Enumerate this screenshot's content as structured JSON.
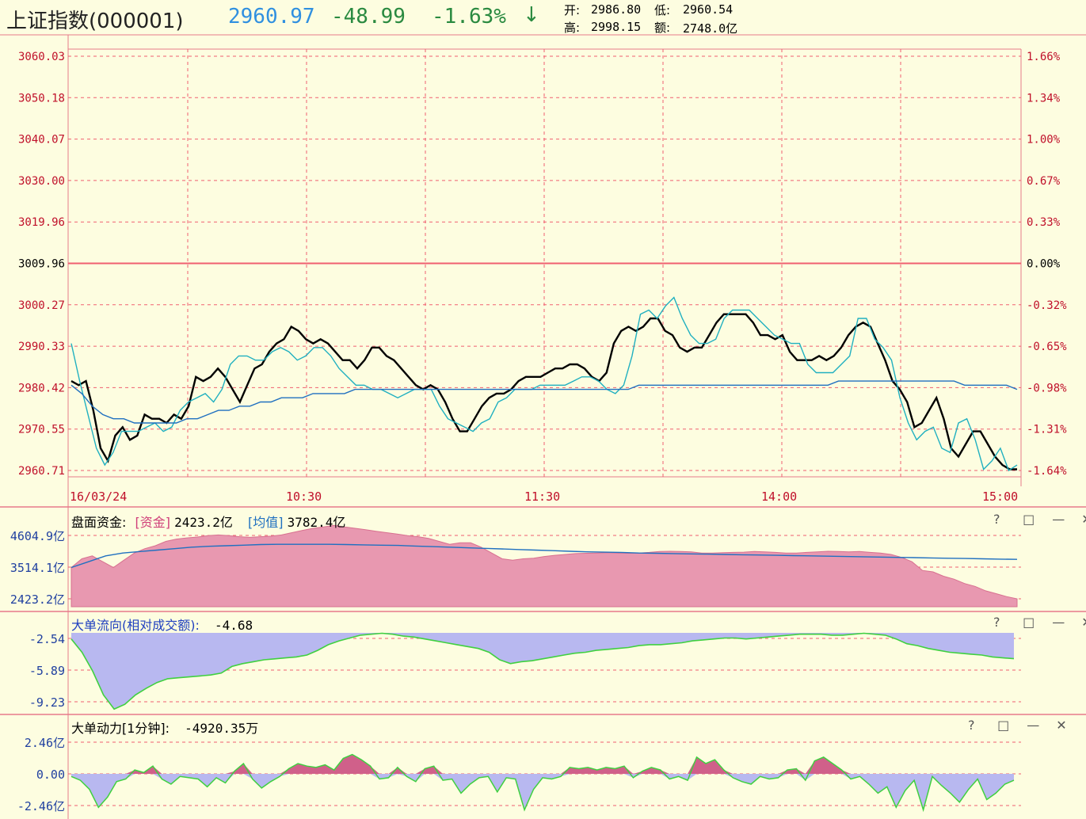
{
  "header": {
    "name": "上证指数(000001)",
    "price": "2960.97",
    "change": "-48.99",
    "change_pct": "-1.63%",
    "arrow": "↓",
    "open_label": "开:",
    "open": "2986.80",
    "low_label": "低:",
    "low": "2960.54",
    "high_label": "高:",
    "high": "2998.15",
    "amount_label": "额:",
    "amount": "2748.0亿",
    "colors": {
      "price": "#3090e0",
      "change": "#2a8a40"
    }
  },
  "chart_data": [
    {
      "type": "line",
      "ylim": [
        2960.71,
        3060.03
      ],
      "yticks": [
        "3060.03",
        "3050.18",
        "3040.07",
        "3030.00",
        "3019.96",
        "3009.96",
        "3000.27",
        "2990.33",
        "2980.42",
        "2970.55",
        "2960.71"
      ],
      "yticks_pct": [
        "1.66%",
        "1.34%",
        "1.00%",
        "0.67%",
        "0.33%",
        "0.00%",
        "-0.32%",
        "-0.65%",
        "-0.98%",
        "-1.31%",
        "-1.64%"
      ],
      "prev_close": 3009.96,
      "xticks": [
        "16/03/24",
        "10:30",
        "11:30",
        "14:00",
        "15:00"
      ],
      "series": [
        {
          "color": "#000000",
          "values": [
            2982,
            2981,
            2982,
            2975,
            2966,
            2963,
            2969,
            2971,
            2968,
            2969,
            2974,
            2973,
            2973,
            2972,
            2974,
            2973,
            2976,
            2983,
            2982,
            2983,
            2985,
            2983,
            2980,
            2977,
            2981,
            2985,
            2986,
            2989,
            2991,
            2992,
            2995,
            2994,
            2992,
            2991,
            2992,
            2991,
            2989,
            2987,
            2987,
            2985,
            2987,
            2990,
            2990,
            2988,
            2987,
            2985,
            2983,
            2981,
            2980,
            2981,
            2980,
            2977,
            2973,
            2970,
            2970,
            2973,
            2976,
            2978,
            2979,
            2979,
            2980,
            2982,
            2983,
            2983,
            2983,
            2984,
            2985,
            2985,
            2986,
            2986,
            2985,
            2983,
            2982,
            2984,
            2991,
            2994,
            2995,
            2994,
            2995,
            2997,
            2997,
            2994,
            2993,
            2990,
            2989,
            2990,
            2990,
            2993,
            2996,
            2998,
            2998,
            2998,
            2998,
            2996,
            2993,
            2993,
            2992,
            2993,
            2989,
            2987,
            2987,
            2987,
            2988,
            2987,
            2988,
            2990,
            2993,
            2995,
            2996,
            2995,
            2991,
            2987,
            2982,
            2980,
            2977,
            2971,
            2972,
            2975,
            2978,
            2973,
            2966,
            2964,
            2967,
            2970,
            2970,
            2967,
            2964,
            2962,
            2961,
            2961
          ]
        },
        {
          "color": "#20b0c0",
          "values": [
            2991,
            2982,
            2974,
            2966,
            2962,
            2965,
            2970,
            2970,
            2970,
            2971,
            2972,
            2970,
            2971,
            2975,
            2977,
            2978,
            2979,
            2977,
            2980,
            2986,
            2988,
            2988,
            2987,
            2987,
            2989,
            2990,
            2989,
            2987,
            2988,
            2990,
            2990,
            2988,
            2985,
            2983,
            2981,
            2981,
            2980,
            2980,
            2979,
            2978,
            2979,
            2980,
            2980,
            2980,
            2976,
            2973,
            2972,
            2971,
            2970,
            2972,
            2973,
            2977,
            2978,
            2980,
            2980,
            2980,
            2981,
            2981,
            2981,
            2981,
            2982,
            2983,
            2983,
            2982,
            2980,
            2979,
            2981,
            2988,
            2998,
            2999,
            2997,
            3000,
            3002,
            2997,
            2993,
            2991,
            2991,
            2992,
            2997,
            2999,
            2999,
            2999,
            2997,
            2995,
            2993,
            2992,
            2991,
            2991,
            2986,
            2984,
            2984,
            2984,
            2986,
            2988,
            2997,
            2997,
            2992,
            2990,
            2987,
            2978,
            2972,
            2968,
            2970,
            2971,
            2966,
            2965,
            2972,
            2973,
            2968,
            2961,
            2963,
            2966,
            2960,
            2962
          ]
        },
        {
          "color": "#2070c0",
          "values": [
            2981,
            2979,
            2976,
            2974,
            2973,
            2973,
            2972,
            2972,
            2972,
            2972,
            2972,
            2973,
            2973,
            2974,
            2975,
            2975,
            2976,
            2976,
            2977,
            2977,
            2978,
            2978,
            2978,
            2979,
            2979,
            2979,
            2979,
            2980,
            2980,
            2980,
            2980,
            2980,
            2980,
            2980,
            2980,
            2980,
            2980,
            2980,
            2980,
            2980,
            2980,
            2980,
            2980,
            2980,
            2980,
            2980,
            2980,
            2980,
            2980,
            2980,
            2980,
            2980,
            2980,
            2980,
            2981,
            2981,
            2981,
            2981,
            2981,
            2981,
            2981,
            2981,
            2981,
            2981,
            2981,
            2981,
            2981,
            2981,
            2981,
            2981,
            2981,
            2981,
            2981,
            2982,
            2982,
            2982,
            2982,
            2982,
            2982,
            2982,
            2982,
            2982,
            2982,
            2982,
            2982,
            2981,
            2981,
            2981,
            2981,
            2981,
            2980
          ]
        }
      ]
    },
    {
      "type": "area",
      "title": "盘面资金:",
      "legend_fund_label": "[资金]",
      "legend_fund_value": "2423.2亿",
      "legend_avg_label": "[均值]",
      "legend_avg_value": "3782.4亿",
      "yticks": [
        "4604.9亿",
        "3514.1亿",
        "2423.2亿"
      ],
      "ylim": [
        2423.2,
        4604.9
      ],
      "fund_color": "#e898b0",
      "avg_color": "#2070c0",
      "fund": [
        3500,
        3800,
        3900,
        3700,
        3500,
        3750,
        4000,
        4150,
        4250,
        4400,
        4480,
        4520,
        4550,
        4600,
        4620,
        4600,
        4560,
        4540,
        4560,
        4580,
        4620,
        4700,
        4780,
        4850,
        4900,
        4950,
        4900,
        4850,
        4800,
        4750,
        4700,
        4650,
        4600,
        4560,
        4500,
        4400,
        4300,
        4350,
        4350,
        4200,
        4000,
        3800,
        3750,
        3800,
        3820,
        3880,
        3920,
        3950,
        3980,
        3990,
        4000,
        4010,
        4000,
        3990,
        4000,
        4020,
        4050,
        4060,
        4050,
        4040,
        4000,
        4000,
        4010,
        4020,
        4030,
        4050,
        4040,
        4020,
        4000,
        4000,
        4020,
        4040,
        4060,
        4050,
        4040,
        4050,
        4020,
        4000,
        3950,
        3850,
        3700,
        3400,
        3350,
        3200,
        3100,
        2950,
        2850,
        2700,
        2600,
        2500,
        2423
      ],
      "avg": [
        3500,
        3700,
        3900,
        4000,
        4050,
        4100,
        4150,
        4200,
        4230,
        4250,
        4270,
        4290,
        4300,
        4300,
        4300,
        4300,
        4290,
        4280,
        4270,
        4260,
        4240,
        4220,
        4200,
        4180,
        4160,
        4140,
        4120,
        4100,
        4080,
        4060,
        4040,
        4030,
        4020,
        4000,
        3990,
        3980,
        3970,
        3960,
        3950,
        3940,
        3930,
        3920,
        3910,
        3900,
        3890,
        3880,
        3870,
        3860,
        3850,
        3840,
        3830,
        3820,
        3810,
        3800,
        3790,
        3782
      ]
    },
    {
      "type": "area",
      "title": "大单流向(相对成交额):",
      "value": "-4.68",
      "yticks": [
        "-2.54",
        "-5.89",
        "-9.23"
      ],
      "ylim": [
        -10,
        -2
      ],
      "fill": "#b8b8f0",
      "stroke": "#40d040",
      "values": [
        -2.6,
        -4,
        -6,
        -8.5,
        -10,
        -9.5,
        -8.5,
        -7.8,
        -7.2,
        -6.8,
        -6.7,
        -6.6,
        -6.5,
        -6.4,
        -6.2,
        -5.5,
        -5.2,
        -5,
        -4.8,
        -4.7,
        -4.6,
        -4.5,
        -4.3,
        -3.8,
        -3.2,
        -2.8,
        -2.5,
        -2.2,
        -2.1,
        -2,
        -2.1,
        -2.3,
        -2.4,
        -2.6,
        -2.8,
        -3,
        -3.2,
        -3.4,
        -3.6,
        -4,
        -4.8,
        -5.2,
        -5,
        -4.9,
        -4.7,
        -4.5,
        -4.3,
        -4.1,
        -4,
        -3.8,
        -3.7,
        -3.6,
        -3.5,
        -3.3,
        -3.2,
        -3.2,
        -3.1,
        -3,
        -2.8,
        -2.7,
        -2.6,
        -2.5,
        -2.5,
        -2.6,
        -2.5,
        -2.4,
        -2.3,
        -2.2,
        -2.1,
        -2.1,
        -2.1,
        -2.2,
        -2.2,
        -2.1,
        -2,
        -2.1,
        -2.2,
        -2.6,
        -3.1,
        -3.3,
        -3.6,
        -3.8,
        -4,
        -4.1,
        -4.2,
        -4.3,
        -4.5,
        -4.6,
        -4.68
      ]
    },
    {
      "type": "area",
      "title": "大单动力[1分钟]:",
      "value": "-4920.35万",
      "yticks": [
        "2.46亿",
        "0.00",
        "-2.46亿"
      ],
      "ylim": [
        -3,
        3
      ],
      "neg_fill": "#b8b8f0",
      "pos_fill": "#d0608a",
      "stroke": "#40d040",
      "values": [
        -0.2,
        -0.5,
        -1.2,
        -2.6,
        -1.8,
        -0.6,
        -0.4,
        0.3,
        0.1,
        0.6,
        -0.4,
        -0.8,
        -0.2,
        -0.3,
        -0.4,
        -1,
        -0.3,
        -0.7,
        0.2,
        0.8,
        -0.4,
        -1.1,
        -0.6,
        -0.2,
        0.4,
        0.8,
        0.6,
        0.5,
        0.7,
        0.3,
        1.2,
        1.5,
        1.1,
        0.6,
        -0.4,
        -0.3,
        0.5,
        -0.2,
        -0.6,
        0.4,
        0.6,
        -0.5,
        -0.4,
        -1.5,
        -0.8,
        -0.3,
        -0.2,
        -1.4,
        -0.3,
        -0.4,
        -2.8,
        -1.2,
        -0.3,
        -0.4,
        -0.2,
        0.5,
        0.4,
        0.5,
        0.3,
        0.5,
        0.4,
        0.6,
        -0.3,
        0.2,
        0.5,
        0.3,
        -0.4,
        -0.2,
        -0.5,
        1.3,
        0.8,
        1.1,
        0.3,
        -0.3,
        -0.6,
        -0.8,
        -0.2,
        -0.4,
        -0.3,
        0.3,
        0.4,
        -0.5,
        1,
        1.3,
        0.8,
        0.3,
        -0.4,
        -0.2,
        -0.8,
        -1.5,
        -1,
        -2.6,
        -1.3,
        -0.5,
        -2.8,
        -0.2,
        -0.9,
        -1.5,
        -2.2,
        -1.2,
        -0.4,
        -2,
        -1.5,
        -0.8,
        -0.5
      ]
    }
  ],
  "panels": {
    "icons": [
      "help-icon",
      "maximize-icon",
      "minimize-icon",
      "close-icon",
      "restore-icon"
    ],
    "icon_glyphs": {
      "help": "?",
      "max": "□",
      "min": "—",
      "close": "✕",
      "restore": "⧉"
    }
  },
  "colors": {
    "background": "#fdfde0",
    "frame": "#e87a8a",
    "grid": "#f06070",
    "price_label": "#c0102a"
  }
}
